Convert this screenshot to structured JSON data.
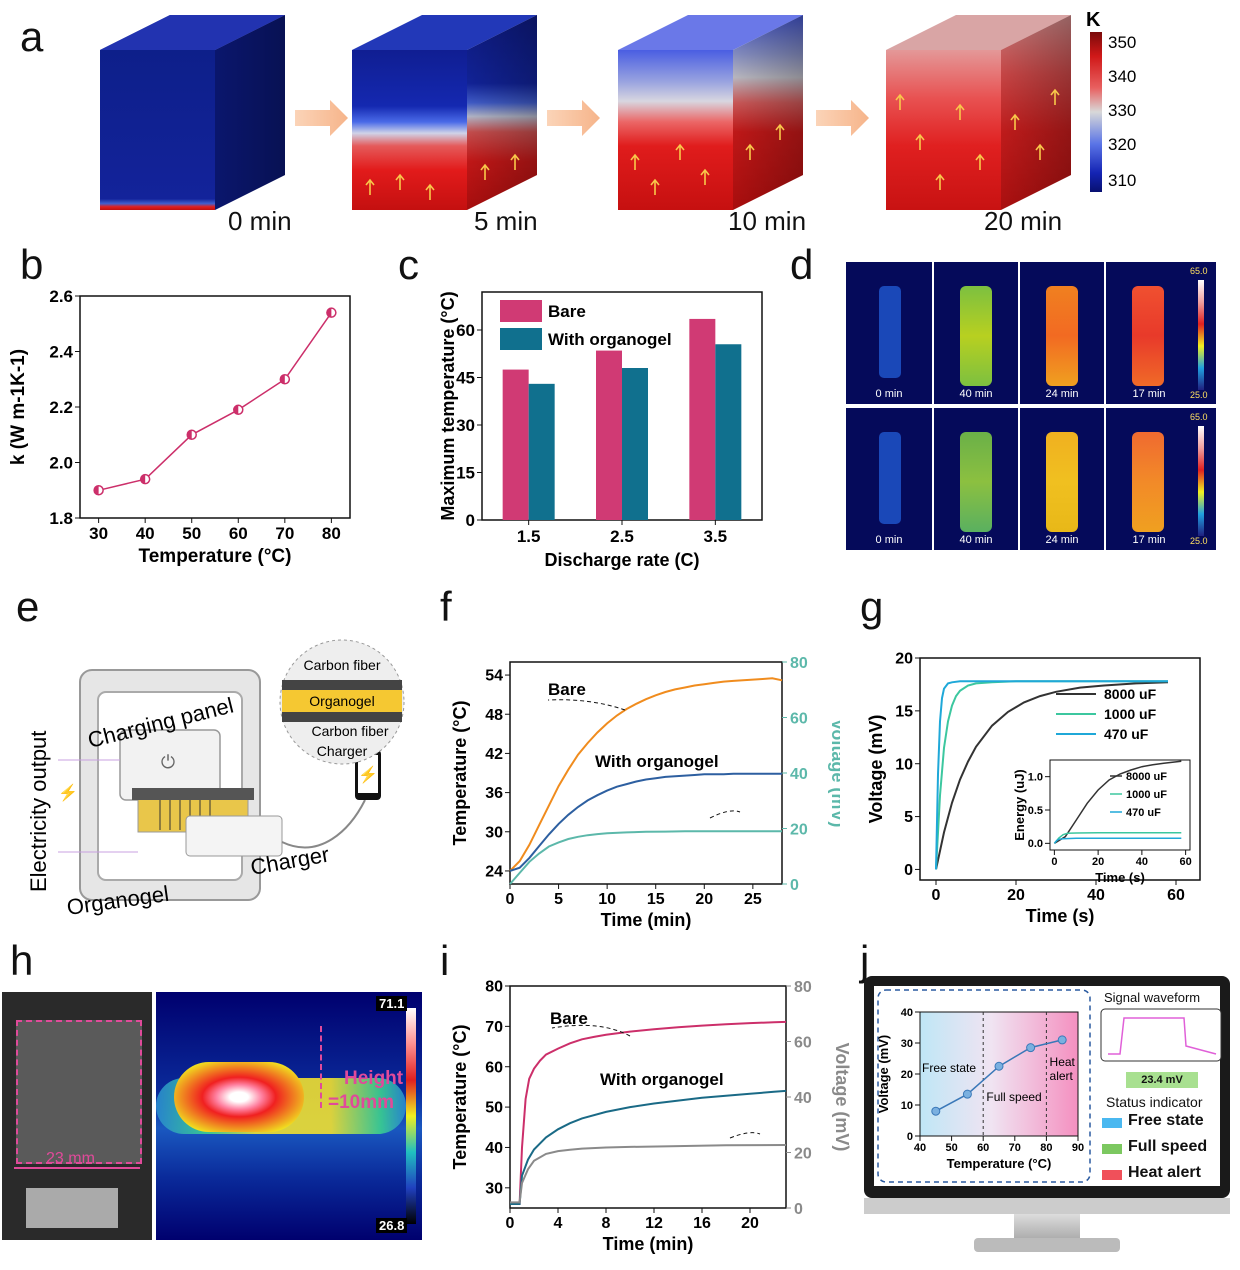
{
  "panel_labels": {
    "a": "a",
    "b": "b",
    "c": "c",
    "d": "d",
    "e": "e",
    "f": "f",
    "g": "g",
    "h": "h",
    "i": "i",
    "j": "j"
  },
  "panel_a": {
    "times": [
      "0 min",
      "5 min",
      "10 min",
      "20 min"
    ],
    "colorbar": {
      "unit": "K",
      "ticks": [
        "350",
        "340",
        "330",
        "320",
        "310"
      ]
    }
  },
  "chart_data": [
    {
      "panel": "b",
      "type": "line",
      "xlabel": "Temperature (°C)",
      "ylabel": "k (W m-1K-1)",
      "x": [
        30,
        40,
        50,
        60,
        70,
        80
      ],
      "y": [
        1.9,
        1.94,
        2.1,
        2.19,
        2.3,
        2.54
      ],
      "xticks": [
        "30",
        "40",
        "50",
        "60",
        "70",
        "80"
      ],
      "yticks": [
        "1.8",
        "2.0",
        "2.2",
        "2.4",
        "2.6"
      ],
      "xlim": [
        26,
        84
      ],
      "ylim": [
        1.8,
        2.6
      ],
      "color": "#cc2f6a"
    },
    {
      "panel": "c",
      "type": "bar",
      "xlabel": "Discharge rate (C)",
      "ylabel": "Maximum temperature (°C)",
      "categories": [
        "1.5",
        "2.5",
        "3.5"
      ],
      "series": [
        {
          "name": "Bare",
          "values": [
            47.5,
            53.5,
            63.5
          ],
          "color": "#d03a74"
        },
        {
          "name": "With organogel",
          "values": [
            43,
            48,
            55.5
          ],
          "color": "#10708e"
        }
      ],
      "yticks": [
        "0",
        "15",
        "30",
        "45",
        "60"
      ],
      "ylim": [
        0,
        72
      ]
    },
    {
      "panel": "f",
      "type": "line",
      "xlabel": "Time (min)",
      "ylabel": "Temperature (°C)",
      "y2label": "Voltage (mV)",
      "xticks": [
        "0",
        "5",
        "10",
        "15",
        "20",
        "25"
      ],
      "yticks": [
        "24",
        "30",
        "36",
        "42",
        "48",
        "54"
      ],
      "y2ticks": [
        "0",
        "20",
        "40",
        "60",
        "80"
      ],
      "xlim": [
        0,
        28
      ],
      "ylim": [
        22,
        56
      ],
      "y2lim": [
        0,
        80
      ],
      "series": [
        {
          "name": "Bare",
          "color": "#f08c1e",
          "x": [
            0,
            1,
            2,
            3,
            4,
            5,
            6,
            7,
            8,
            9,
            10,
            11,
            12,
            13,
            14,
            15,
            16,
            17,
            18,
            19,
            20,
            21,
            22,
            23,
            24,
            25,
            26,
            27,
            28
          ],
          "y": [
            24,
            25.5,
            28,
            31,
            34,
            37,
            39.5,
            41.8,
            43.6,
            45.2,
            46.6,
            47.8,
            48.8,
            49.6,
            50.3,
            50.9,
            51.4,
            51.8,
            52.1,
            52.4,
            52.6,
            52.8,
            53,
            53.1,
            53.2,
            53.3,
            53.4,
            53.5,
            53.2
          ]
        },
        {
          "name": "With organogel",
          "color": "#2d5fa0",
          "x": [
            0,
            1,
            2,
            3,
            4,
            5,
            6,
            7,
            8,
            9,
            10,
            11,
            12,
            13,
            14,
            15,
            16,
            17,
            18,
            19,
            20,
            21,
            22,
            23,
            24,
            25,
            26,
            27,
            28
          ],
          "y": [
            24,
            24.5,
            26,
            27.8,
            29.6,
            31.2,
            32.6,
            33.8,
            34.8,
            35.6,
            36.3,
            36.9,
            37.3,
            37.7,
            38,
            38.2,
            38.4,
            38.5,
            38.6,
            38.7,
            38.8,
            38.8,
            38.8,
            38.9,
            38.9,
            38.9,
            38.9,
            38.9,
            38.9
          ]
        },
        {
          "name": "Voltage",
          "axis": "y2",
          "color": "#5cb8aa",
          "x": [
            0,
            1,
            2,
            3,
            4,
            5,
            6,
            7,
            8,
            9,
            10,
            12,
            14,
            16,
            18,
            20,
            22,
            24,
            26,
            28
          ],
          "y": [
            0,
            4,
            8,
            11,
            13.5,
            15,
            16.2,
            17,
            17.6,
            18,
            18.3,
            18.6,
            18.8,
            18.9,
            19,
            19,
            19,
            19,
            19,
            19
          ]
        }
      ]
    },
    {
      "panel": "g",
      "type": "line",
      "xlabel": "Time (s)",
      "ylabel": "Voltage (mV)",
      "xticks": [
        "0",
        "20",
        "40",
        "60"
      ],
      "yticks": [
        "0",
        "5",
        "10",
        "15",
        "20"
      ],
      "xlim": [
        -4,
        66
      ],
      "ylim": [
        -1,
        20
      ],
      "series": [
        {
          "name": "8000 uF",
          "color": "#333333",
          "x": [
            0,
            2,
            4,
            6,
            8,
            10,
            14,
            18,
            22,
            26,
            30,
            36,
            42,
            50,
            58
          ],
          "y": [
            0,
            3.5,
            6.3,
            8.5,
            10.2,
            11.6,
            13.6,
            14.9,
            15.8,
            16.4,
            16.8,
            17.2,
            17.4,
            17.6,
            17.7
          ]
        },
        {
          "name": "1000 uF",
          "color": "#3cc79f",
          "x": [
            0,
            1,
            2,
            3,
            4,
            5,
            6,
            8,
            10,
            14,
            20,
            30,
            40,
            50,
            58
          ],
          "y": [
            0,
            7,
            11.5,
            14,
            15.5,
            16.4,
            16.9,
            17.4,
            17.6,
            17.7,
            17.8,
            17.8,
            17.8,
            17.8,
            17.8
          ]
        },
        {
          "name": "470 uF",
          "color": "#1fa8d8",
          "x": [
            0,
            0.5,
            1,
            1.5,
            2,
            3,
            4,
            6,
            10,
            20,
            30,
            40,
            50,
            58
          ],
          "y": [
            0,
            9,
            14,
            16.2,
            17.1,
            17.6,
            17.7,
            17.8,
            17.8,
            17.8,
            17.8,
            17.8,
            17.8,
            17.8
          ]
        }
      ],
      "inset": {
        "xlabel": "Time (s)",
        "ylabel": "Energy (uJ)",
        "xticks": [
          "0",
          "20",
          "40",
          "60"
        ],
        "yticks": [
          "0.0",
          "0.5",
          "1.0"
        ],
        "xlim": [
          -2,
          62
        ],
        "ylim": [
          -0.1,
          1.25
        ],
        "series": [
          {
            "name": "8000 uF",
            "color": "#333333",
            "x": [
              0,
              5,
              10,
              15,
              20,
              25,
              30,
              35,
              40,
              45,
              50,
              55,
              58
            ],
            "y": [
              0,
              0.1,
              0.35,
              0.6,
              0.8,
              0.95,
              1.04,
              1.1,
              1.15,
              1.18,
              1.2,
              1.22,
              1.23
            ]
          },
          {
            "name": "1000 uF",
            "color": "#3cc79f",
            "x": [
              0,
              2,
              4,
              6,
              10,
              20,
              30,
              40,
              50,
              58
            ],
            "y": [
              0,
              0.08,
              0.13,
              0.15,
              0.155,
              0.16,
              0.16,
              0.16,
              0.16,
              0.16
            ]
          },
          {
            "name": "470 uF",
            "color": "#1fa8d8",
            "x": [
              0,
              1,
              2,
              4,
              10,
              20,
              30,
              40,
              50,
              58
            ],
            "y": [
              0,
              0.04,
              0.06,
              0.07,
              0.075,
              0.075,
              0.075,
              0.075,
              0.075,
              0.075
            ]
          }
        ]
      }
    },
    {
      "panel": "i",
      "type": "line",
      "xlabel": "Time (min)",
      "ylabel": "Temperature (°C)",
      "y2label": "Voltage (mV)",
      "xticks": [
        "0",
        "4",
        "8",
        "12",
        "16",
        "20"
      ],
      "yticks": [
        "30",
        "40",
        "50",
        "60",
        "70",
        "80"
      ],
      "y2ticks": [
        "0",
        "20",
        "40",
        "60",
        "80"
      ],
      "xlim": [
        0,
        23
      ],
      "ylim": [
        25,
        80
      ],
      "y2lim": [
        0,
        80
      ],
      "series": [
        {
          "name": "Bare",
          "color": "#cc2f6a",
          "x": [
            0,
            0.8,
            1,
            1.3,
            1.6,
            2,
            2.5,
            3,
            4,
            5,
            6,
            7,
            8,
            10,
            12,
            14,
            16,
            18,
            20,
            22,
            23
          ],
          "y": [
            26,
            26,
            40,
            52,
            57,
            59.5,
            61.5,
            63,
            64.5,
            65.8,
            66.8,
            67.4,
            67.9,
            68.7,
            69.3,
            69.8,
            70.2,
            70.5,
            70.8,
            71,
            71.1
          ]
        },
        {
          "name": "With organogel",
          "color": "#1a6a86",
          "x": [
            0,
            0.8,
            1,
            1.5,
            2,
            3,
            4,
            5,
            6,
            8,
            10,
            12,
            14,
            16,
            18,
            20,
            22,
            23
          ],
          "y": [
            26,
            26,
            33,
            37,
            39.5,
            42.5,
            44.5,
            46,
            47.2,
            48.8,
            50,
            50.9,
            51.6,
            52.3,
            52.8,
            53.3,
            53.8,
            54
          ]
        },
        {
          "name": "Voltage",
          "axis": "y2",
          "color": "#8a8a8a",
          "x": [
            0,
            0.8,
            1,
            1.5,
            2,
            3,
            4,
            5,
            6,
            8,
            10,
            14,
            18,
            23
          ],
          "y": [
            2,
            2,
            9,
            14,
            17,
            19.5,
            20.5,
            21,
            21.4,
            21.8,
            22,
            22.3,
            22.6,
            22.7
          ]
        }
      ]
    },
    {
      "panel": "j",
      "type": "line",
      "xlabel": "Temperature (°C)",
      "ylabel": "Voltage (mV)",
      "x": [
        45,
        55,
        65,
        75,
        85
      ],
      "y": [
        8,
        13.5,
        22.5,
        28.5,
        31
      ],
      "xticks": [
        "40",
        "50",
        "60",
        "70",
        "80",
        "90"
      ],
      "yticks": [
        "0",
        "10",
        "20",
        "30",
        "40"
      ],
      "xlim": [
        40,
        90
      ],
      "ylim": [
        0,
        40
      ],
      "color": "#3a78b8"
    }
  ],
  "panel_c_legend": [
    "Bare",
    "With organogel"
  ],
  "panel_d": {
    "times_top": [
      "0 min",
      "40 min",
      "24 min",
      "17 min"
    ],
    "times_bottom": [
      "0 min",
      "40 min",
      "24 min",
      "17 min"
    ],
    "scale_max": "65.0",
    "scale_min": "25.0"
  },
  "panel_e": {
    "panel_label": "Charging panel",
    "electricity": "Electricity output",
    "organogel": "Organogel",
    "charger": "Charger",
    "layer_top": "Carbon fiber",
    "layer_mid": "Organogel",
    "layer_bottom1": "Carbon fiber",
    "layer_bottom2": "Charger"
  },
  "panel_f": {
    "bare": "Bare",
    "organogel": "With organogel"
  },
  "panel_g_legend": [
    "8000 uF",
    "1000 uF",
    "470 uF"
  ],
  "panel_h": {
    "dimension": "23 mm",
    "height": "Height",
    "height_value": "=10mm",
    "scale_max": "71.1",
    "scale_min": "26.8"
  },
  "panel_i": {
    "bare": "Bare",
    "organogel": "With organogel"
  },
  "panel_j": {
    "free_state": "Free state",
    "full_speed": "Full speed",
    "heat_alert": "Heat",
    "heat_alert2": "alert",
    "signal_title": "Signal waveform",
    "reading": "23.4 mV",
    "status_title": "Status indicator",
    "status": [
      "Free state",
      "Full speed",
      "Heat alert"
    ],
    "status_colors": [
      "#4ab8f0",
      "#7cc860",
      "#f0505a"
    ]
  }
}
